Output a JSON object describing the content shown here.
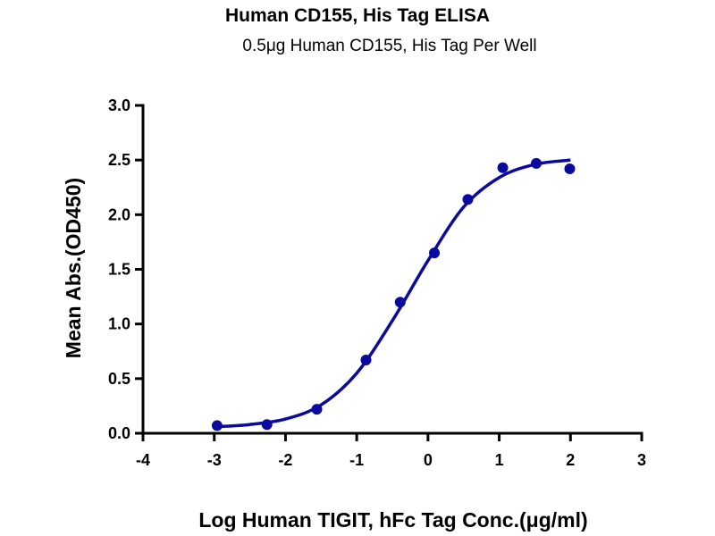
{
  "chart_data": {
    "type": "scatter",
    "title": "Human CD155, His Tag ELISA",
    "subtitle": "0.5μg  Human CD155, His Tag Per Well",
    "xlabel": "Log Human TIGIT, hFc Tag Conc.(μg/ml)",
    "ylabel": "Mean Abs.(OD450)",
    "xlim": [
      -4,
      3
    ],
    "ylim": [
      0,
      3
    ],
    "xticks": [
      "-4",
      "-3",
      "-2",
      "-1",
      "0",
      "1",
      "2",
      "3"
    ],
    "yticks": [
      "0.0",
      "0.5",
      "1.0",
      "1.5",
      "2.0",
      "2.5",
      "3.0"
    ],
    "grid": false,
    "color": "#0a0a9e",
    "series": [
      {
        "name": "data",
        "x": [
          -2.96,
          -2.26,
          -1.56,
          -0.87,
          -0.39,
          0.09,
          0.56,
          1.05,
          1.52,
          1.99
        ],
        "y": [
          0.07,
          0.08,
          0.22,
          0.67,
          1.2,
          1.65,
          2.14,
          2.43,
          2.47,
          2.42
        ]
      }
    ],
    "fit_curve": {
      "x": [
        -2.96,
        -2.5,
        -2.0,
        -1.5,
        -1.0,
        -0.5,
        0.0,
        0.5,
        1.0,
        1.5,
        2.0
      ],
      "y": [
        0.06,
        0.08,
        0.13,
        0.26,
        0.55,
        1.03,
        1.58,
        2.07,
        2.34,
        2.46,
        2.5
      ]
    }
  }
}
